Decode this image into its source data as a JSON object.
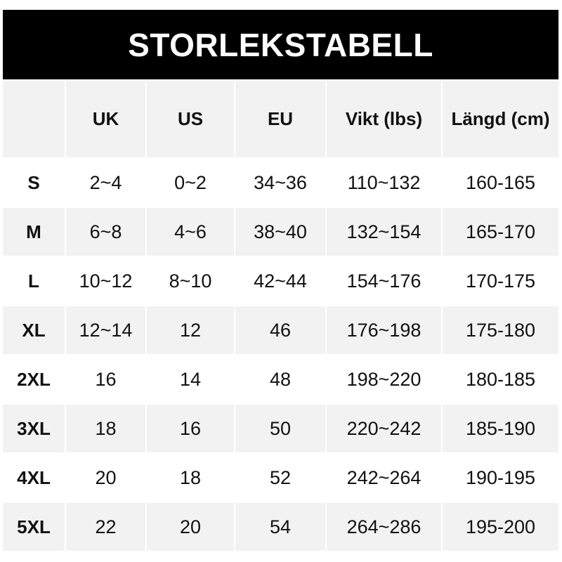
{
  "title": "STORLEKSTABELL",
  "colors": {
    "header_bg": "#000000",
    "header_text": "#ffffff",
    "stripe": "#f2f2f2"
  },
  "columns": [
    "",
    "UK",
    "US",
    "EU",
    "Vikt (lbs)",
    "Längd (cm)"
  ],
  "rows": [
    [
      "S",
      "2~4",
      "0~2",
      "34~36",
      "110~132",
      "160-165"
    ],
    [
      "M",
      "6~8",
      "4~6",
      "38~40",
      "132~154",
      "165-170"
    ],
    [
      "L",
      "10~12",
      "8~10",
      "42~44",
      "154~176",
      "170-175"
    ],
    [
      "XL",
      "12~14",
      "12",
      "46",
      "176~198",
      "175-180"
    ],
    [
      "2XL",
      "16",
      "14",
      "48",
      "198~220",
      "180-185"
    ],
    [
      "3XL",
      "18",
      "16",
      "50",
      "220~242",
      "185-190"
    ],
    [
      "4XL",
      "20",
      "18",
      "52",
      "242~264",
      "190-195"
    ],
    [
      "5XL",
      "22",
      "20",
      "54",
      "264~286",
      "195-200"
    ]
  ]
}
